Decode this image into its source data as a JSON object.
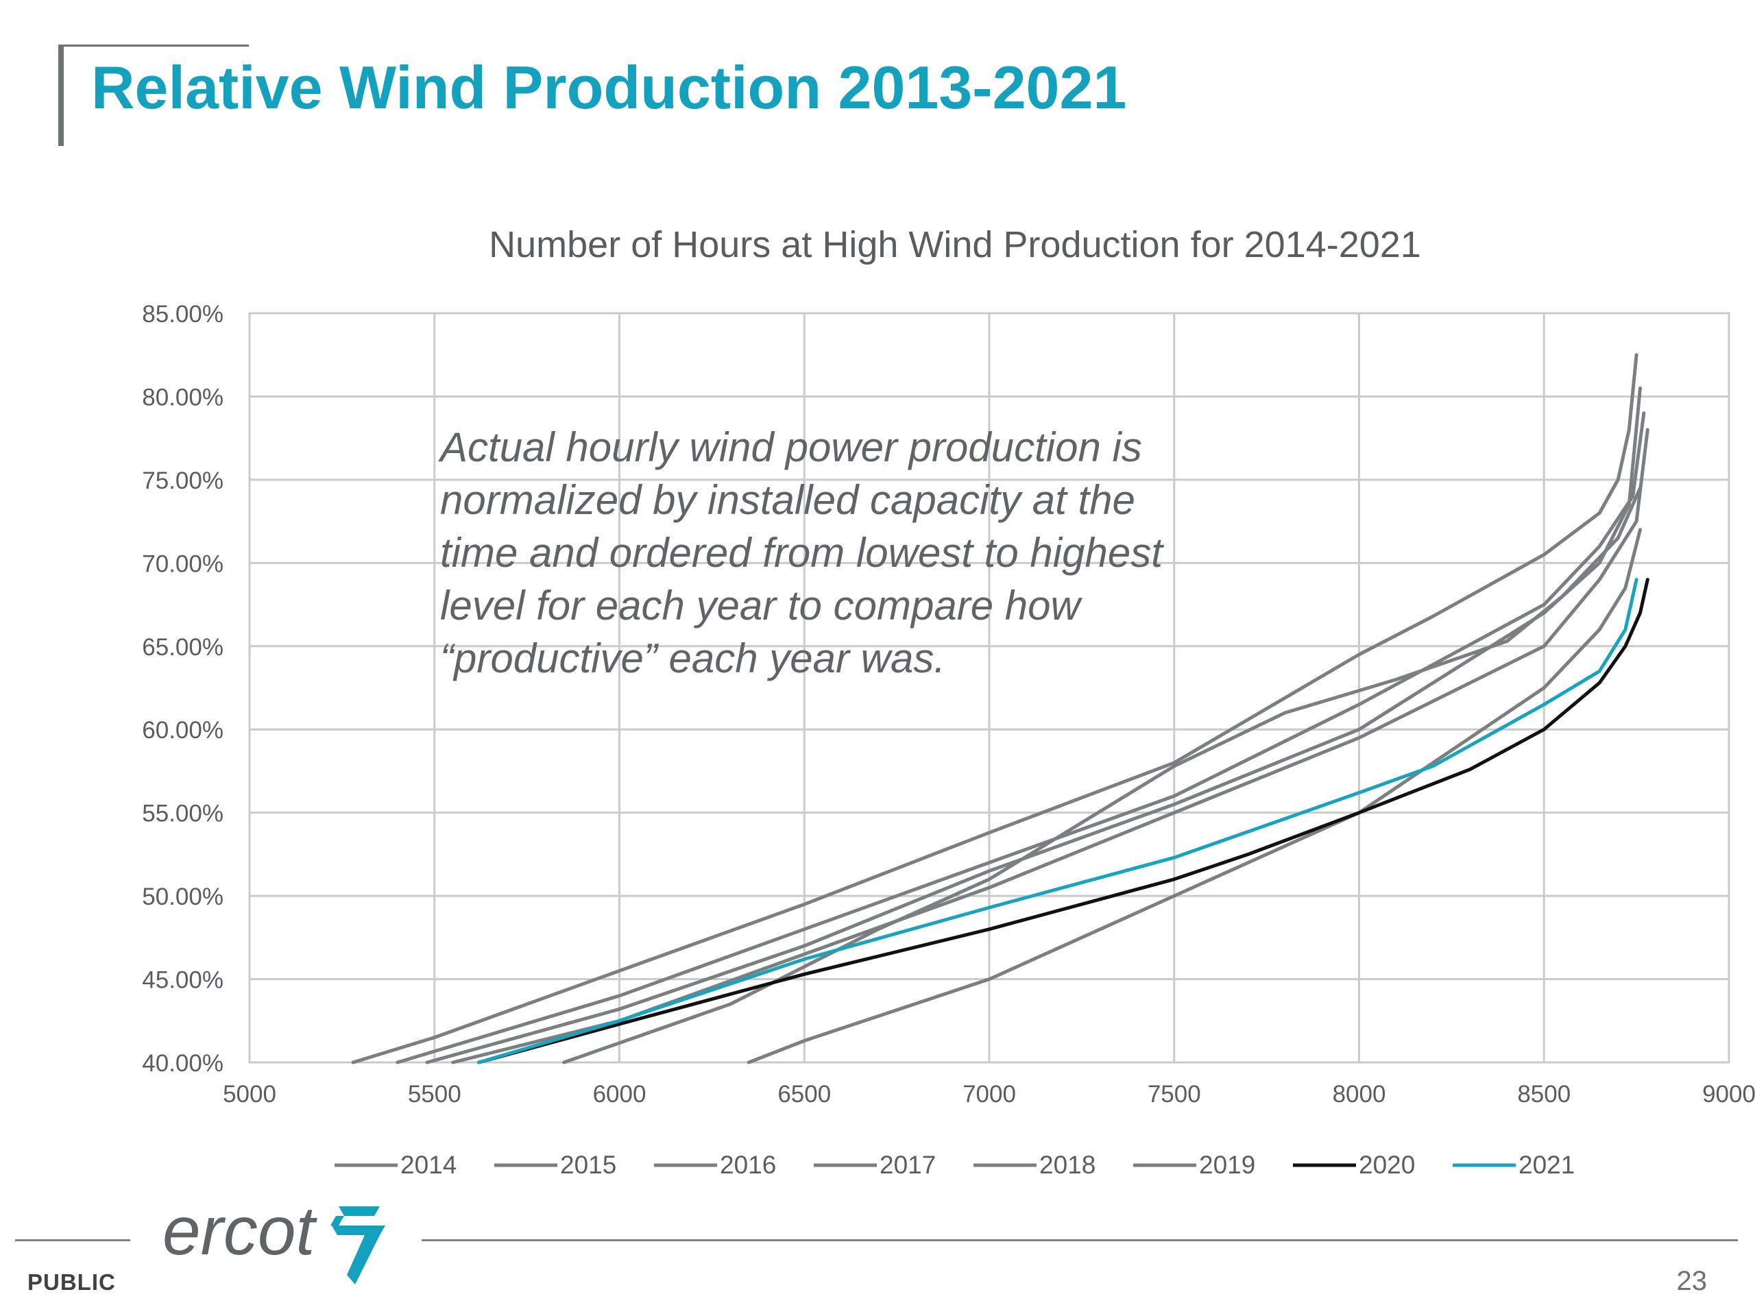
{
  "slide": {
    "title": "Relative Wind Production 2013-2021",
    "annotation": "Actual hourly wind power production is\nnormalized by installed capacity at the\ntime and ordered from lowest to highest\nlevel for each year to compare how\n“productive” each year was.",
    "footer_label": "PUBLIC",
    "page_number": "23",
    "logo_text": "ercot",
    "colors": {
      "title": "#14a1bd",
      "logo": "#5f6467",
      "logo_mark": "#14a1bd"
    }
  },
  "chart_data": {
    "type": "line",
    "title": "Number of Hours at High Wind Production for 2014-2021",
    "xlabel": "",
    "ylabel": "",
    "xlim": [
      5000,
      9000
    ],
    "ylim": [
      40,
      85
    ],
    "x_ticks": [
      "5000",
      "5500",
      "6000",
      "6500",
      "7000",
      "7500",
      "8000",
      "8500",
      "9000"
    ],
    "y_ticks": [
      "40.00%",
      "45.00%",
      "50.00%",
      "55.00%",
      "60.00%",
      "65.00%",
      "70.00%",
      "75.00%",
      "80.00%",
      "85.00%"
    ],
    "grid": true,
    "legend_position": "bottom",
    "series": [
      {
        "name": "2014",
        "color": "#7a7f82",
        "points": [
          [
            5280,
            40
          ],
          [
            5500,
            41.5
          ],
          [
            6000,
            45.5
          ],
          [
            6500,
            49.5
          ],
          [
            7000,
            53.8
          ],
          [
            7500,
            58
          ],
          [
            8000,
            64.5
          ],
          [
            8200,
            66.8
          ],
          [
            8500,
            70.5
          ],
          [
            8650,
            73
          ],
          [
            8700,
            75
          ],
          [
            8730,
            78
          ],
          [
            8750,
            82.5
          ]
        ]
      },
      {
        "name": "2015",
        "color": "#7a7f82",
        "points": [
          [
            5480,
            40
          ],
          [
            6000,
            43.2
          ],
          [
            6500,
            47
          ],
          [
            7000,
            51.5
          ],
          [
            7500,
            55.5
          ],
          [
            8000,
            60
          ],
          [
            8500,
            67
          ],
          [
            8650,
            70
          ],
          [
            8730,
            73.5
          ],
          [
            8760,
            80.5
          ]
        ]
      },
      {
        "name": "2016",
        "color": "#7a7f82",
        "points": [
          [
            5400,
            40
          ],
          [
            6000,
            44
          ],
          [
            6500,
            48
          ],
          [
            7000,
            52
          ],
          [
            7500,
            56
          ],
          [
            8000,
            61.5
          ],
          [
            8500,
            67.5
          ],
          [
            8650,
            71
          ],
          [
            8740,
            74
          ],
          [
            8770,
            79
          ]
        ]
      },
      {
        "name": "2017",
        "color": "#7a7f82",
        "points": [
          [
            5550,
            40
          ],
          [
            6000,
            42.5
          ],
          [
            6500,
            46.5
          ],
          [
            7000,
            50.5
          ],
          [
            7500,
            55
          ],
          [
            8000,
            59.5
          ],
          [
            8500,
            65
          ],
          [
            8650,
            69
          ],
          [
            8750,
            72.5
          ],
          [
            8780,
            78
          ]
        ]
      },
      {
        "name": "2018",
        "color": "#7a7f82",
        "points": [
          [
            5850,
            40
          ],
          [
            6300,
            43.5
          ],
          [
            6700,
            48
          ],
          [
            7000,
            51
          ],
          [
            7500,
            57.8
          ],
          [
            7800,
            61
          ],
          [
            8100,
            63
          ],
          [
            8400,
            65.3
          ],
          [
            8550,
            68
          ],
          [
            8700,
            71.5
          ],
          [
            8760,
            74.5
          ]
        ]
      },
      {
        "name": "2019",
        "color": "#7a7f82",
        "points": [
          [
            6350,
            40
          ],
          [
            6500,
            41.3
          ],
          [
            7000,
            45
          ],
          [
            7500,
            50
          ],
          [
            8000,
            55
          ],
          [
            8300,
            59.5
          ],
          [
            8500,
            62.5
          ],
          [
            8650,
            66
          ],
          [
            8720,
            68.5
          ],
          [
            8760,
            72
          ]
        ]
      },
      {
        "name": "2020",
        "color": "#111111",
        "points": [
          [
            5620,
            40
          ],
          [
            6000,
            42.3
          ],
          [
            6500,
            45.3
          ],
          [
            7000,
            48
          ],
          [
            7500,
            51
          ],
          [
            7700,
            52.5
          ],
          [
            8000,
            55
          ],
          [
            8300,
            57.6
          ],
          [
            8500,
            60
          ],
          [
            8650,
            62.8
          ],
          [
            8720,
            65
          ],
          [
            8760,
            67
          ],
          [
            8780,
            69
          ]
        ]
      },
      {
        "name": "2021",
        "color": "#19a3be",
        "points": [
          [
            5620,
            40
          ],
          [
            6000,
            42.5
          ],
          [
            6500,
            46.2
          ],
          [
            7000,
            49.3
          ],
          [
            7500,
            52.3
          ],
          [
            8000,
            56.2
          ],
          [
            8200,
            57.8
          ],
          [
            8500,
            61.5
          ],
          [
            8650,
            63.5
          ],
          [
            8720,
            66
          ],
          [
            8750,
            69
          ]
        ]
      }
    ]
  }
}
